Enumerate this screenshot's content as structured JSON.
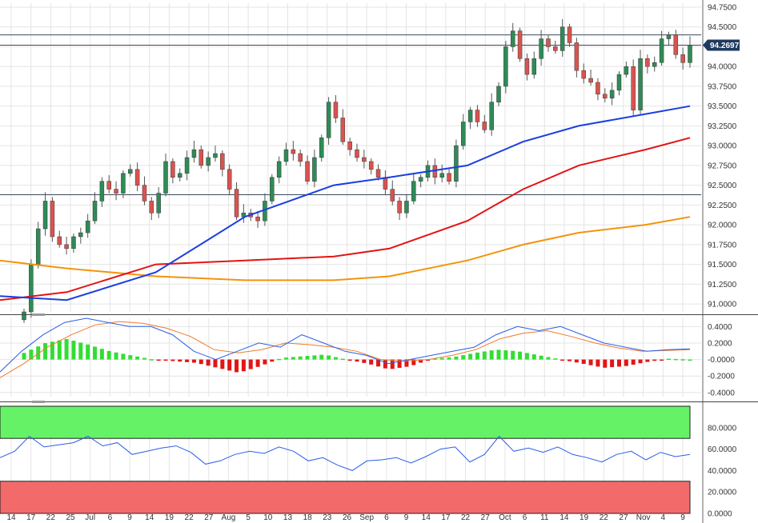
{
  "colors": {
    "up_candle": "#2e8b57",
    "down_candle": "#d9534f",
    "sma_blue": "#1a3fe0",
    "sma_red": "#e31414",
    "sma_orange": "#f5930a",
    "macd_line": "#2a5ee8",
    "signal_line": "#f07a2a",
    "hist_pos": "#33dd33",
    "hist_neg": "#e21515",
    "rsi_line": "#2a5ee8",
    "overbought_fill": "#66f266",
    "oversold_fill": "#f26a6a",
    "price_tag": "#1e3a5f"
  },
  "price_tag": "94.2697",
  "chart_data": [
    {
      "type": "candlestick",
      "title": "",
      "ylim": [
        90.9,
        94.8
      ],
      "y_ticks": [
        "94.7500",
        "94.5000",
        "94.2500",
        "94.0000",
        "93.7500",
        "93.5000",
        "93.2500",
        "93.0000",
        "92.7500",
        "92.5000",
        "92.2500",
        "92.0000",
        "91.7500",
        "91.5000",
        "91.2500",
        "91.0000"
      ],
      "x_tick_labels": [
        "14",
        "17",
        "22",
        "25",
        "Jul",
        "6",
        "9",
        "14",
        "19",
        "22",
        "27",
        "Aug",
        "5",
        "10",
        "13",
        "18",
        "23",
        "26",
        "Sep",
        "6",
        "9",
        "14",
        "17",
        "22",
        "27",
        "Oct",
        "6",
        "11",
        "14",
        "19",
        "22",
        "27",
        "Nov",
        "4",
        "9"
      ],
      "horizontal_levels": [
        94.4,
        94.27,
        92.38
      ],
      "last_price": 94.2697,
      "ohlc_close_series": [
        90.9,
        91.5,
        91.95,
        92.3,
        91.85,
        91.75,
        91.7,
        91.85,
        91.9,
        92.05,
        92.3,
        92.55,
        92.45,
        92.4,
        92.65,
        92.7,
        92.5,
        92.3,
        92.15,
        92.4,
        92.8,
        92.6,
        92.65,
        92.85,
        92.95,
        92.75,
        92.85,
        92.9,
        92.7,
        92.45,
        92.1,
        92.15,
        92.1,
        92.05,
        92.3,
        92.6,
        92.8,
        92.95,
        92.9,
        92.8,
        92.55,
        92.85,
        93.1,
        93.55,
        93.35,
        93.05,
        92.95,
        92.85,
        92.8,
        92.7,
        92.6,
        92.45,
        92.3,
        92.15,
        92.3,
        92.55,
        92.6,
        92.75,
        92.6,
        92.65,
        92.55,
        93.0,
        93.3,
        93.45,
        93.3,
        93.2,
        93.55,
        93.75,
        94.25,
        94.45,
        94.1,
        93.9,
        94.1,
        94.35,
        94.25,
        94.2,
        94.5,
        94.3,
        93.95,
        93.85,
        93.8,
        93.65,
        93.6,
        93.7,
        93.9,
        94.0,
        93.45,
        94.1,
        94.0,
        94.05,
        94.35,
        94.4,
        94.15,
        94.05,
        94.27
      ],
      "sma_blue": [
        [
          0,
          91.1
        ],
        [
          30,
          91.05
        ],
        [
          70,
          91.4
        ],
        [
          110,
          92.1
        ],
        [
          150,
          92.5
        ],
        [
          175,
          92.6
        ],
        [
          210,
          92.75
        ],
        [
          235,
          93.05
        ],
        [
          260,
          93.25
        ],
        [
          290,
          93.4
        ],
        [
          310,
          93.5
        ]
      ],
      "sma_red": [
        [
          0,
          91.05
        ],
        [
          30,
          91.15
        ],
        [
          70,
          91.5
        ],
        [
          110,
          91.55
        ],
        [
          150,
          91.6
        ],
        [
          175,
          91.7
        ],
        [
          210,
          92.05
        ],
        [
          235,
          92.45
        ],
        [
          260,
          92.75
        ],
        [
          290,
          92.95
        ],
        [
          310,
          93.1
        ]
      ],
      "sma_orange": [
        [
          0,
          91.55
        ],
        [
          30,
          91.45
        ],
        [
          70,
          91.35
        ],
        [
          110,
          91.3
        ],
        [
          150,
          91.3
        ],
        [
          175,
          91.35
        ],
        [
          210,
          91.55
        ],
        [
          235,
          91.75
        ],
        [
          260,
          91.9
        ],
        [
          290,
          92.0
        ],
        [
          310,
          92.1
        ]
      ]
    },
    {
      "type": "macd",
      "ylim": [
        -0.45,
        0.5
      ],
      "y_ticks": [
        "0.4000",
        "0.2000",
        "-0.0000",
        "-0.2000",
        "-0.4000"
      ],
      "macd": [
        -0.15,
        0.1,
        0.3,
        0.45,
        0.5,
        0.45,
        0.4,
        0.4,
        0.3,
        0.1,
        0.0,
        0.1,
        0.2,
        0.15,
        0.3,
        0.2,
        0.1,
        0.05,
        -0.05,
        0.0,
        0.05,
        0.1,
        0.15,
        0.3,
        0.4,
        0.35,
        0.4,
        0.3,
        0.2,
        0.15,
        0.1,
        0.12,
        0.13
      ],
      "signal": [
        -0.22,
        -0.05,
        0.15,
        0.3,
        0.42,
        0.46,
        0.44,
        0.38,
        0.28,
        0.12,
        0.08,
        0.12,
        0.2,
        0.18,
        0.15,
        0.1,
        0.0,
        -0.02,
        0.0,
        0.05,
        0.12,
        0.25,
        0.32,
        0.35,
        0.28,
        0.2,
        0.14,
        0.1,
        0.11,
        0.12
      ],
      "histogram": [
        0.08,
        0.2,
        0.25,
        0.18,
        0.1,
        0.05,
        0.0,
        -0.02,
        -0.04,
        -0.1,
        -0.16,
        -0.08,
        0.02,
        0.04,
        0.06,
        0.0,
        -0.05,
        -0.12,
        -0.08,
        0.01,
        0.03,
        0.08,
        0.12,
        0.1,
        0.05,
        0.0,
        -0.05,
        -0.1,
        -0.08,
        -0.03,
        0.01,
        0.0
      ]
    },
    {
      "type": "rsi",
      "ylim": [
        0,
        100
      ],
      "y_ticks": [
        "80.0000",
        "60.0000",
        "40.0000",
        "20.0000",
        "0.0000"
      ],
      "overbought": 70,
      "oversold": 30,
      "rsi": [
        52,
        58,
        72,
        62,
        64,
        66,
        72,
        63,
        66,
        55,
        58,
        61,
        63,
        57,
        46,
        49,
        55,
        58,
        56,
        62,
        58,
        49,
        52,
        45,
        40,
        49,
        50,
        52,
        47,
        53,
        60,
        62,
        48,
        55,
        72,
        58,
        61,
        57,
        62,
        55,
        52,
        48,
        55,
        58,
        50,
        57,
        53,
        55
      ]
    }
  ]
}
